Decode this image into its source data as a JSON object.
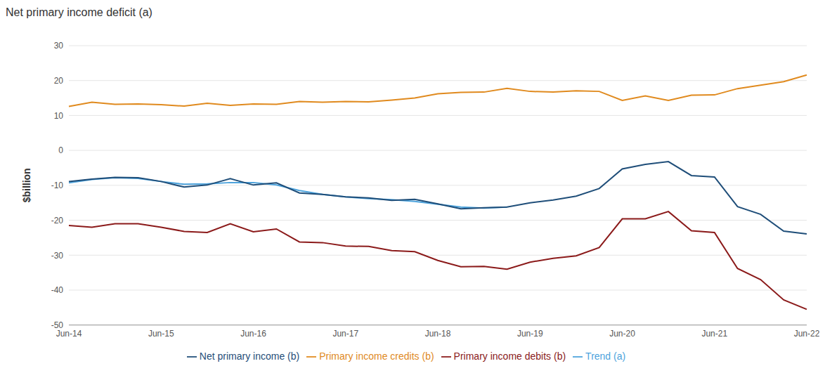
{
  "chart_data": {
    "type": "line",
    "title": "Net primary income deficit (a)",
    "y_label": "$billion",
    "categories": [
      "Jun-14",
      null,
      null,
      null,
      "Jun-15",
      null,
      null,
      null,
      "Jun-16",
      null,
      null,
      null,
      "Jun-17",
      null,
      null,
      null,
      "Jun-18",
      null,
      null,
      null,
      "Jun-19",
      null,
      null,
      null,
      "Jun-20",
      null,
      null,
      null,
      "Jun-21",
      null,
      null,
      null,
      "Jun-22"
    ],
    "series": [
      {
        "name": "Trend (a)",
        "color": "#4da3dc",
        "values": [
          -9.3,
          -8.3,
          -7.8,
          -8.0,
          -8.9,
          -9.7,
          -9.6,
          -9.2,
          -9.2,
          -9.9,
          -11.5,
          -12.6,
          -13.3,
          -13.8,
          -14.1,
          -14.6,
          -15.4,
          -16.2,
          -16.5,
          -16.2,
          null,
          null,
          null,
          null,
          null,
          null,
          null,
          null,
          null,
          null,
          null,
          null,
          null
        ]
      },
      {
        "name": "Net primary income (b)",
        "color": "#1f4e79",
        "values": [
          -8.9,
          -8.2,
          -7.7,
          -7.8,
          -8.9,
          -10.5,
          -9.9,
          -8.1,
          -9.9,
          -9.3,
          -12.2,
          -12.6,
          -13.3,
          -13.6,
          -14.3,
          -14.0,
          -15.3,
          -16.7,
          -16.4,
          -16.2,
          -15.0,
          -14.2,
          -13.1,
          -10.9,
          -5.3,
          -4.0,
          -3.2,
          -7.2,
          -7.6,
          -16.1,
          -18.3,
          -23.1,
          -23.9
        ]
      },
      {
        "name": "Primary income credits (b)",
        "color": "#e08a1e",
        "values": [
          12.6,
          13.8,
          13.2,
          13.3,
          13.1,
          12.7,
          13.5,
          12.9,
          13.3,
          13.2,
          14.0,
          13.8,
          14.0,
          13.9,
          14.4,
          15.0,
          16.2,
          16.6,
          16.7,
          17.8,
          16.9,
          16.7,
          17.1,
          16.9,
          14.3,
          15.6,
          14.3,
          15.8,
          15.9,
          17.7,
          18.7,
          19.7,
          21.6
        ]
      },
      {
        "name": "Primary income debits (b)",
        "color": "#8b1a1a",
        "values": [
          -21.5,
          -22.0,
          -21.0,
          -21.0,
          -22.0,
          -23.2,
          -23.5,
          -21.0,
          -23.3,
          -22.5,
          -26.2,
          -26.4,
          -27.4,
          -27.5,
          -28.7,
          -29.0,
          -31.5,
          -33.3,
          -33.2,
          -34.0,
          -32.0,
          -30.9,
          -30.2,
          -27.8,
          -19.6,
          -19.6,
          -17.5,
          -23.0,
          -23.5,
          -33.8,
          -37.0,
          -42.8,
          -45.5
        ]
      }
    ],
    "ylim": [
      -50,
      30
    ],
    "yticks": [
      -50,
      -40,
      -30,
      -20,
      -10,
      0,
      10,
      20,
      30
    ],
    "grid": true,
    "legend": "bottom"
  }
}
